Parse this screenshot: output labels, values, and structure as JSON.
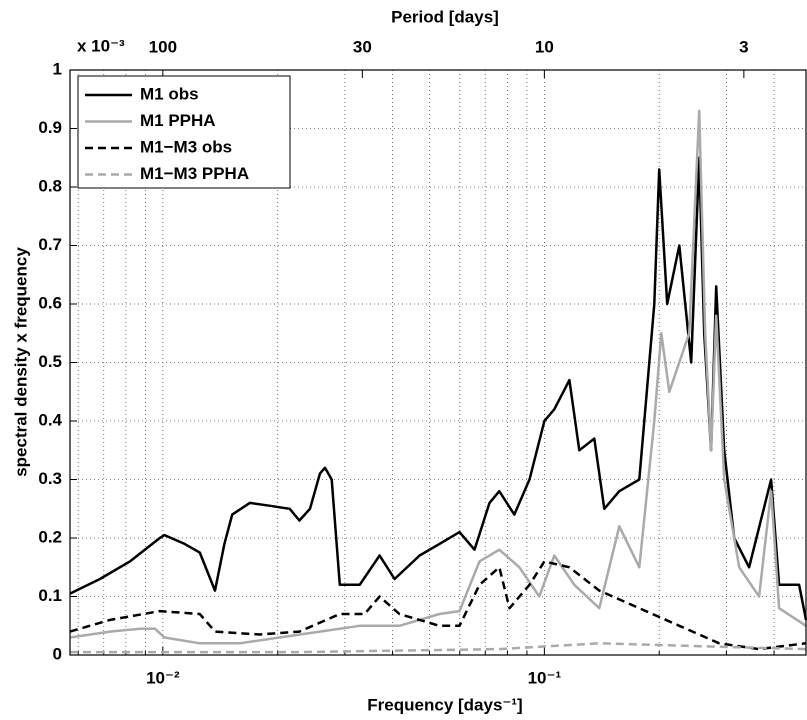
{
  "chart_data": {
    "type": "line",
    "title": "Period [days]",
    "xlabel": "Frequency [days⁻¹]",
    "ylabel": "spectral density x frequency",
    "multiplier": "x 10⁻³",
    "xscale": "log",
    "grid": true,
    "legend": "upper left",
    "xlim": [
      0.00571,
      0.485
    ],
    "ylim": [
      0,
      1
    ],
    "xticks": [
      {
        "value": 0.01,
        "label": "10⁻²"
      },
      {
        "value": 0.1,
        "label": "10⁻¹"
      }
    ],
    "xminorticks": [
      0.006,
      0.007,
      0.008,
      0.009,
      0.02,
      0.03,
      0.04,
      0.05,
      0.06,
      0.07,
      0.08,
      0.09,
      0.2,
      0.3,
      0.4
    ],
    "yticks": [
      0,
      0.1,
      0.2,
      0.3,
      0.4,
      0.5,
      0.6,
      0.7,
      0.8,
      0.9,
      1
    ],
    "x2ticks": [
      100,
      30,
      10,
      3
    ],
    "series": [
      {
        "name": "M1 obs",
        "color": "#000000",
        "dash": false,
        "x": [
          0.00571,
          0.00684,
          0.0082,
          0.00982,
          0.0101,
          0.0114,
          0.0125,
          0.0137,
          0.0145,
          0.0152,
          0.0169,
          0.0191,
          0.0215,
          0.0228,
          0.0243,
          0.0258,
          0.0266,
          0.0277,
          0.0291,
          0.0328,
          0.037,
          0.0405,
          0.0471,
          0.0531,
          0.0599,
          0.0656,
          0.0718,
          0.0762,
          0.0834,
          0.0914,
          0.1,
          0.1062,
          0.1163,
          0.1235,
          0.1352,
          0.1436,
          0.1572,
          0.1773,
          0.1941,
          0.2,
          0.2099,
          0.2257,
          0.2426,
          0.2546,
          0.2623,
          0.2736,
          0.282,
          0.296,
          0.3144,
          0.344,
          0.3929,
          0.4123,
          0.4651,
          0.485
        ],
        "values": [
          0.105,
          0.13,
          0.16,
          0.2,
          0.205,
          0.19,
          0.175,
          0.11,
          0.19,
          0.24,
          0.26,
          0.255,
          0.25,
          0.23,
          0.25,
          0.31,
          0.32,
          0.3,
          0.12,
          0.12,
          0.17,
          0.13,
          0.17,
          0.19,
          0.21,
          0.18,
          0.26,
          0.28,
          0.24,
          0.3,
          0.4,
          0.42,
          0.47,
          0.35,
          0.37,
          0.25,
          0.28,
          0.3,
          0.6,
          0.83,
          0.6,
          0.7,
          0.5,
          0.85,
          0.55,
          0.35,
          0.63,
          0.35,
          0.2,
          0.15,
          0.3,
          0.12,
          0.12,
          0.06
        ]
      },
      {
        "name": "M1 PPHA",
        "color": "#aaaaaa",
        "dash": false,
        "x": [
          0.00571,
          0.00727,
          0.00871,
          0.00953,
          0.0101,
          0.0125,
          0.0159,
          0.0202,
          0.0258,
          0.0328,
          0.0417,
          0.0531,
          0.0599,
          0.0676,
          0.0762,
          0.086,
          0.097,
          0.1062,
          0.1198,
          0.1393,
          0.1572,
          0.1773,
          0.1941,
          0.2025,
          0.2125,
          0.2397,
          0.2546,
          0.2639,
          0.2736,
          0.282,
          0.296,
          0.324,
          0.3654,
          0.3929,
          0.4123,
          0.485
        ],
        "values": [
          0.03,
          0.04,
          0.045,
          0.045,
          0.03,
          0.02,
          0.02,
          0.03,
          0.04,
          0.05,
          0.05,
          0.07,
          0.075,
          0.16,
          0.18,
          0.15,
          0.1,
          0.17,
          0.12,
          0.08,
          0.22,
          0.15,
          0.4,
          0.55,
          0.45,
          0.55,
          0.93,
          0.55,
          0.35,
          0.58,
          0.3,
          0.15,
          0.1,
          0.28,
          0.08,
          0.05
        ]
      },
      {
        "name": "M1−M3 obs",
        "color": "#000000",
        "dash": true,
        "x": [
          0.00571,
          0.00727,
          0.00982,
          0.0125,
          0.0137,
          0.0179,
          0.0228,
          0.0291,
          0.0338,
          0.037,
          0.0417,
          0.0531,
          0.0599,
          0.0676,
          0.0762,
          0.081,
          0.0914,
          0.1,
          0.1163,
          0.1393,
          0.1773,
          0.2257,
          0.2872,
          0.3654,
          0.485
        ],
        "values": [
          0.04,
          0.06,
          0.075,
          0.07,
          0.04,
          0.035,
          0.04,
          0.07,
          0.07,
          0.1,
          0.07,
          0.05,
          0.05,
          0.12,
          0.15,
          0.08,
          0.12,
          0.16,
          0.15,
          0.11,
          0.08,
          0.05,
          0.02,
          0.01,
          0.02
        ]
      },
      {
        "name": "M1−M3 PPHA",
        "color": "#aaaaaa",
        "dash": true,
        "x": [
          0.00571,
          0.0228,
          0.0762,
          0.1393,
          0.2546,
          0.485
        ],
        "values": [
          0.005,
          0.005,
          0.01,
          0.02,
          0.015,
          0.01
        ]
      }
    ]
  }
}
